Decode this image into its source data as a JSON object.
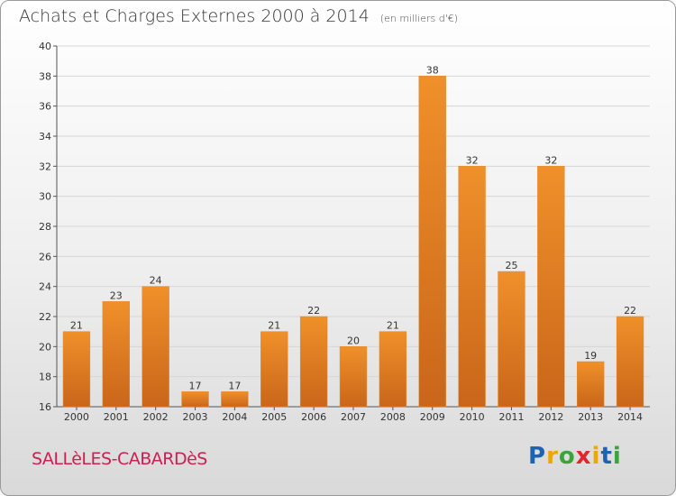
{
  "title": "Achats et Charges Externes 2000 à 2014",
  "unit": "(en milliers d'€)",
  "commune": "SALLèLES-CABARDèS",
  "logo": {
    "letters": [
      "P",
      "r",
      "o",
      "x",
      "i",
      "t",
      "i"
    ],
    "colors": [
      "#1e63b0",
      "#f0a500",
      "#3ca33c",
      "#e2242c",
      "#f0a500",
      "#1e63b0",
      "#3ca33c"
    ]
  },
  "chart_data": {
    "type": "bar",
    "categories": [
      "2000",
      "2001",
      "2002",
      "2003",
      "2004",
      "2005",
      "2006",
      "2007",
      "2008",
      "2009",
      "2010",
      "2011",
      "2012",
      "2013",
      "2014"
    ],
    "values": [
      21,
      23,
      24,
      17,
      17,
      21,
      22,
      20,
      21,
      38,
      32,
      25,
      32,
      19,
      22
    ],
    "title": "Achats et Charges Externes 2000 à 2014",
    "ylim": [
      16,
      40
    ],
    "yticks": [
      16,
      18,
      20,
      22,
      24,
      26,
      28,
      30,
      32,
      34,
      36,
      38,
      40
    ],
    "grid": true,
    "bar_color": "#f0902a",
    "bar_color_dark": "#c9661a"
  }
}
